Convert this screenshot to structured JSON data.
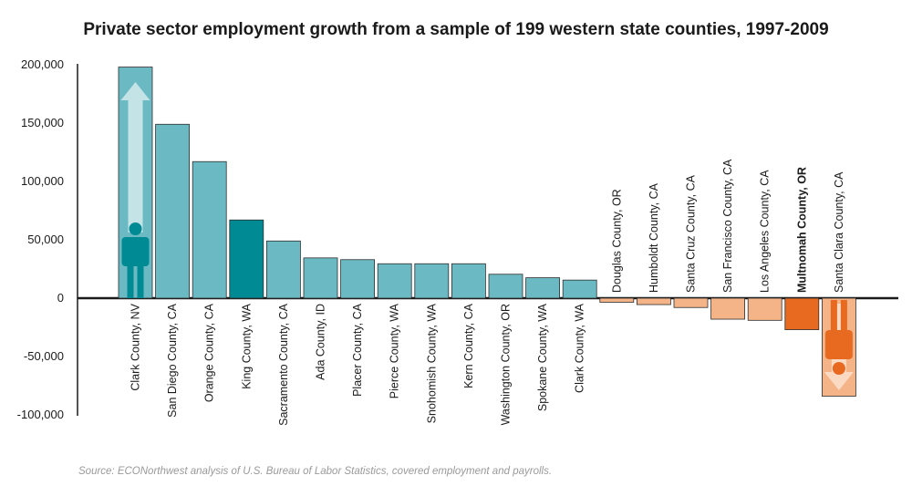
{
  "chart_data": {
    "type": "bar",
    "title": "Private sector employment growth from a sample of 199 western state counties, 1997-2009",
    "xlabel": "",
    "ylabel": "",
    "ylim": [
      -100000,
      200000
    ],
    "yticks": [
      200000,
      150000,
      100000,
      50000,
      0,
      -50000,
      -100000
    ],
    "ytick_labels": [
      "200,000",
      "150,000",
      "100,000",
      "50,000",
      "0",
      "-50,000",
      "-100,000"
    ],
    "categories": [
      "Clark County, NV",
      "San Diego County, CA",
      "Orange County, CA",
      "King County, WA",
      "Sacramento County, CA",
      "Ada County, ID",
      "Placer County, CA",
      "Pierce County, WA",
      "Snohomish County, WA",
      "Kern County, CA",
      "Washington County, OR",
      "Spokane County, WA",
      "Clark County, WA",
      "Douglas County, OR",
      "Humboldt County, CA",
      "Santa Cruz County, CA",
      "San Francisco County, CA",
      "Los Angeles County, CA",
      "Multnomah County, OR",
      "Santa Clara County, CA"
    ],
    "values": [
      198000,
      149000,
      117000,
      67000,
      49000,
      34500,
      33000,
      29500,
      29500,
      29500,
      20500,
      17500,
      15500,
      -3500,
      -5500,
      -8000,
      -18000,
      -19000,
      -27000,
      -84000
    ],
    "highlight": [
      "King County, WA",
      "Multnomah County, OR"
    ],
    "colors": {
      "positive": "#6bb9c3",
      "positive_highlight": "#008a94",
      "negative": "#f5b487",
      "negative_highlight": "#e86a21",
      "bar_border": "#2e2e2e",
      "axis": "#1a1a1a"
    },
    "grid": false,
    "legend": "none"
  },
  "source": "Source: ECONorthwest analysis of U.S. Bureau of Labor Statistics, covered employment and payrolls.",
  "icons": {
    "growth": "person-with-up-arrow-icon",
    "decline": "inverted-person-with-down-arrow-icon"
  }
}
